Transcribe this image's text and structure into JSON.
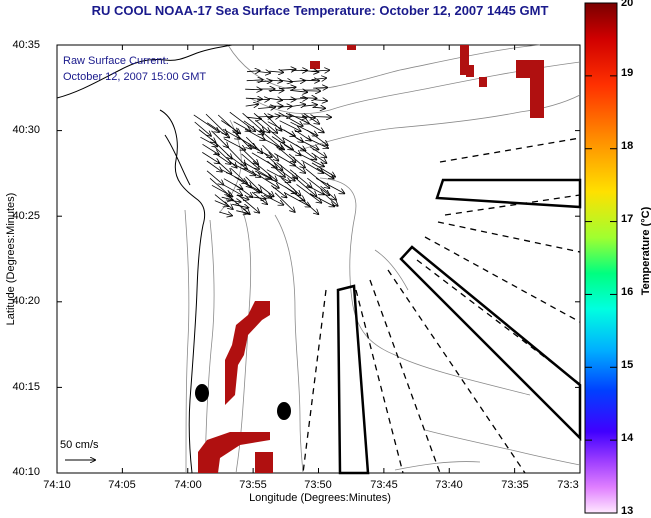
{
  "title": "RU COOL  NOAA-17  Sea Surface Temperature:  October 12, 2007 1445 GMT",
  "current": {
    "label": "Raw Surface Current:",
    "time": "October 12, 2007 15:00 GMT",
    "scale_label": "50 cm/s"
  },
  "axes": {
    "xlabel": "Longitude (Degrees:Minutes)",
    "ylabel": "Latitude (Degrees:Minutes)",
    "xticks": [
      "74:10",
      "74:05",
      "74:00",
      "73:55",
      "73:50",
      "73:45",
      "73:40",
      "73:35",
      "73:3"
    ],
    "yticks": [
      "40:35",
      "40:30",
      "40:25",
      "40:20",
      "40:15",
      "40:10"
    ]
  },
  "colorbar": {
    "label": "Temperature (°C)",
    "ticks": [
      "20",
      "19",
      "18",
      "17",
      "16",
      "15",
      "14",
      "13"
    ],
    "range": [
      13,
      20
    ]
  },
  "colors": {
    "title": "#1a1a8c",
    "sst_patch": "#b01010"
  }
}
